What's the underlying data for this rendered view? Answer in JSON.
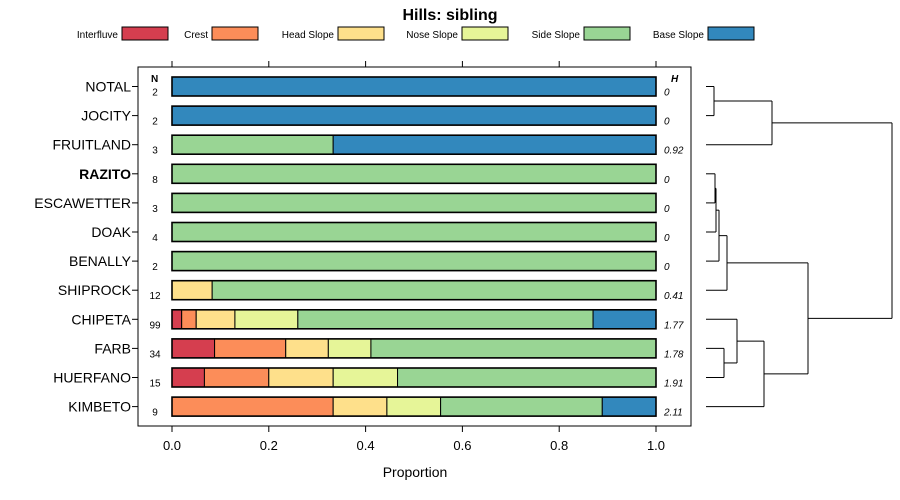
{
  "chart_data": {
    "type": "bar",
    "orientation": "horizontal",
    "stacked": true,
    "title": "Hills: sibling",
    "xlabel": "Proportion",
    "xlim": [
      0,
      1
    ],
    "xticks": [
      "0.0",
      "0.2",
      "0.4",
      "0.6",
      "0.8",
      "1.0"
    ],
    "n_header": "N",
    "h_header": "H",
    "highlighted": "RAZITO",
    "legend": [
      {
        "name": "Interfluve",
        "color": "#d53e4f"
      },
      {
        "name": "Crest",
        "color": "#fc8d59"
      },
      {
        "name": "Head Slope",
        "color": "#fee08b"
      },
      {
        "name": "Nose Slope",
        "color": "#e6f598"
      },
      {
        "name": "Side Slope",
        "color": "#99d594"
      },
      {
        "name": "Base Slope",
        "color": "#3288bd"
      }
    ],
    "rows": [
      {
        "label": "NOTAL",
        "n": "2",
        "h": "0",
        "values": [
          0,
          0,
          0,
          0,
          0,
          1.0
        ]
      },
      {
        "label": "JOCITY",
        "n": "2",
        "h": "0",
        "values": [
          0,
          0,
          0,
          0,
          0,
          1.0
        ]
      },
      {
        "label": "FRUITLAND",
        "n": "3",
        "h": "0.92",
        "values": [
          0,
          0,
          0,
          0,
          0.333,
          0.667
        ]
      },
      {
        "label": "RAZITO",
        "n": "8",
        "h": "0",
        "values": [
          0,
          0,
          0,
          0,
          1.0,
          0
        ]
      },
      {
        "label": "ESCAWETTER",
        "n": "3",
        "h": "0",
        "values": [
          0,
          0,
          0,
          0,
          1.0,
          0
        ]
      },
      {
        "label": "DOAK",
        "n": "4",
        "h": "0",
        "values": [
          0,
          0,
          0,
          0,
          1.0,
          0
        ]
      },
      {
        "label": "BENALLY",
        "n": "2",
        "h": "0",
        "values": [
          0,
          0,
          0,
          0,
          1.0,
          0
        ]
      },
      {
        "label": "SHIPROCK",
        "n": "12",
        "h": "0.41",
        "values": [
          0,
          0,
          0.083,
          0,
          0.917,
          0
        ]
      },
      {
        "label": "CHIPETA",
        "n": "99",
        "h": "1.77",
        "values": [
          0.02,
          0.03,
          0.08,
          0.13,
          0.61,
          0.13
        ]
      },
      {
        "label": "FARB",
        "n": "34",
        "h": "1.78",
        "values": [
          0.088,
          0.147,
          0.088,
          0.088,
          0.589,
          0
        ]
      },
      {
        "label": "HUERFANO",
        "n": "15",
        "h": "1.91",
        "values": [
          0.067,
          0.133,
          0.133,
          0.133,
          0.534,
          0
        ]
      },
      {
        "label": "KIMBETO",
        "n": "9",
        "h": "2.11",
        "values": [
          0,
          0.333,
          0.111,
          0.111,
          0.334,
          0.111
        ]
      }
    ]
  }
}
